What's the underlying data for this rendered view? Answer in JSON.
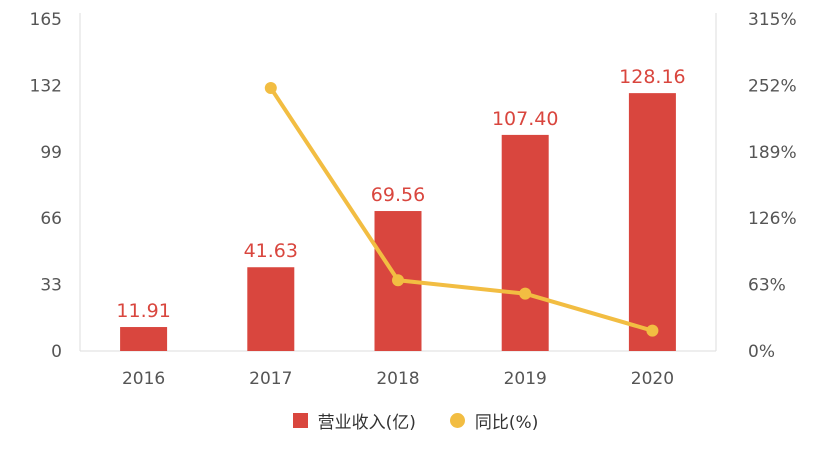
{
  "chart_data": {
    "type": "bar+line",
    "categories": [
      "2016",
      "2017",
      "2018",
      "2019",
      "2020"
    ],
    "series": [
      {
        "name": "营业收入(亿)",
        "kind": "bar",
        "axis": "left",
        "values": [
          11.91,
          41.63,
          69.56,
          107.4,
          128.16
        ],
        "labels": [
          "11.91",
          "41.63",
          "69.56",
          "107.40",
          "128.16"
        ],
        "color": "#d9463e"
      },
      {
        "name": "同比(%)",
        "kind": "line",
        "axis": "right",
        "values": [
          null,
          249.5,
          67.1,
          54.4,
          19.3
        ],
        "color": "#f2bd42"
      }
    ],
    "y_left": {
      "ticks": [
        "0",
        "33",
        "66",
        "99",
        "132",
        "165"
      ],
      "ylim": [
        0,
        165
      ]
    },
    "y_right": {
      "ticks": [
        "0%",
        "63%",
        "126%",
        "189%",
        "252%",
        "315%"
      ],
      "ylim": [
        0,
        315
      ]
    },
    "grid": false,
    "legend_position": "bottom-center"
  }
}
